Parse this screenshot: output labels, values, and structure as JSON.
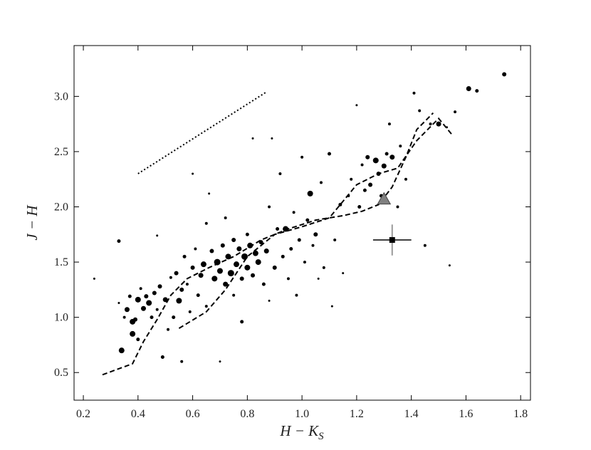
{
  "chart_data": {
    "type": "scatter",
    "xlabel": "H − K",
    "xlabel_subscript": "S",
    "ylabel": "J − H",
    "xlim": [
      0.166,
      1.836
    ],
    "ylim": [
      0.25,
      3.46
    ],
    "xticks": [
      0.2,
      0.4,
      0.6,
      0.8,
      {
        "value": 1,
        "label": "1.0"
      },
      1.2,
      1.4,
      1.6,
      1.8
    ],
    "yticks": [
      0.5,
      {
        "value": 1,
        "label": "1.0"
      },
      1.5,
      {
        "value": 2,
        "label": "2.0"
      },
      2.5,
      {
        "value": 3,
        "label": "3.0"
      }
    ],
    "color": "#000000",
    "points": {
      "x": [
        0.24,
        0.33,
        0.33,
        0.34,
        0.35,
        0.36,
        0.37,
        0.38,
        0.38,
        0.39,
        0.4,
        0.4,
        0.41,
        0.42,
        0.43,
        0.44,
        0.45,
        0.46,
        0.47,
        0.47,
        0.48,
        0.49,
        0.5,
        0.51,
        0.52,
        0.53,
        0.54,
        0.55,
        0.56,
        0.56,
        0.57,
        0.58,
        0.59,
        0.6,
        0.6,
        0.61,
        0.62,
        0.63,
        0.64,
        0.65,
        0.65,
        0.66,
        0.67,
        0.68,
        0.69,
        0.7,
        0.7,
        0.71,
        0.72,
        0.72,
        0.73,
        0.74,
        0.75,
        0.75,
        0.76,
        0.77,
        0.78,
        0.78,
        0.79,
        0.8,
        0.8,
        0.81,
        0.82,
        0.82,
        0.83,
        0.84,
        0.85,
        0.86,
        0.87,
        0.88,
        0.88,
        0.89,
        0.9,
        0.91,
        0.92,
        0.93,
        0.94,
        0.95,
        0.96,
        0.97,
        0.98,
        0.99,
        1.0,
        1.01,
        1.02,
        1.03,
        1.04,
        1.05,
        1.06,
        1.07,
        1.08,
        1.1,
        1.11,
        1.12,
        1.14,
        1.15,
        1.17,
        1.18,
        1.2,
        1.21,
        1.22,
        1.23,
        1.24,
        1.25,
        1.27,
        1.28,
        1.29,
        1.3,
        1.31,
        1.32,
        1.33,
        1.35,
        1.36,
        1.38,
        1.41,
        1.43,
        1.45,
        1.47,
        1.5,
        1.53,
        1.54,
        1.56,
        1.61,
        1.64,
        1.74
      ],
      "y": [
        1.35,
        1.69,
        1.13,
        0.7,
        1.0,
        1.07,
        1.19,
        0.96,
        0.85,
        0.98,
        1.16,
        0.8,
        1.26,
        1.08,
        1.19,
        1.13,
        1.0,
        1.22,
        1.07,
        1.74,
        1.28,
        0.64,
        1.16,
        0.89,
        1.36,
        1.0,
        1.4,
        1.15,
        0.6,
        1.25,
        1.55,
        1.3,
        1.05,
        1.45,
        2.3,
        1.62,
        1.2,
        1.38,
        1.48,
        1.1,
        1.85,
        2.12,
        1.6,
        1.35,
        1.5,
        1.42,
        0.6,
        1.65,
        1.3,
        1.9,
        1.55,
        1.4,
        1.2,
        1.7,
        1.48,
        1.62,
        1.35,
        0.96,
        1.55,
        1.45,
        1.75,
        1.65,
        1.38,
        2.62,
        1.58,
        1.5,
        1.68,
        1.3,
        1.6,
        2.0,
        1.15,
        2.62,
        1.45,
        1.8,
        2.3,
        1.55,
        1.8,
        1.35,
        1.62,
        1.95,
        1.2,
        1.7,
        2.45,
        1.5,
        1.88,
        2.12,
        1.65,
        1.75,
        1.35,
        2.22,
        1.45,
        2.48,
        1.1,
        1.7,
        2.02,
        1.4,
        2.1,
        2.25,
        2.92,
        2.0,
        2.38,
        2.15,
        2.45,
        2.2,
        2.42,
        2.3,
        2.1,
        2.37,
        2.48,
        2.75,
        2.45,
        2.0,
        2.55,
        2.25,
        3.03,
        2.87,
        1.65,
        2.75,
        2.75,
        2.72,
        1.47,
        2.86,
        3.07,
        3.05,
        3.2
      ],
      "sizes": [
        1.5,
        2.5,
        1.5,
        4,
        2,
        3.5,
        2.5,
        4,
        4,
        3,
        4,
        2.5,
        2,
        3.5,
        3,
        4,
        2.5,
        3,
        2,
        1.5,
        3,
        2.5,
        3.5,
        2,
        2,
        2.5,
        3,
        4,
        2,
        3,
        2.5,
        2,
        2,
        3,
        1.5,
        2,
        2.5,
        3.5,
        4,
        2,
        2,
        1.5,
        3,
        4,
        4.5,
        4,
        1.5,
        3,
        3.5,
        2,
        4,
        4.5,
        2,
        3,
        4,
        3.5,
        3,
        2.5,
        4.5,
        4,
        2.5,
        4,
        3,
        1.5,
        4,
        4,
        3,
        2.5,
        3.5,
        2,
        1.5,
        1.5,
        3,
        2.5,
        2,
        2.5,
        4,
        2,
        2.5,
        2,
        2,
        2.5,
        2,
        2,
        2.5,
        4,
        2,
        3,
        1.5,
        2,
        2,
        2.5,
        1.5,
        2,
        2.5,
        1.5,
        2,
        2,
        1.5,
        2.5,
        2,
        2.5,
        3,
        3,
        4,
        3,
        2.5,
        3.5,
        2.5,
        2,
        3.5,
        2,
        2,
        2,
        2,
        2,
        2,
        2,
        3.5,
        1.5,
        1.5,
        2,
        3.5,
        2.5,
        3
      ]
    },
    "tracks": [
      {
        "x": [
          0.27,
          0.38,
          0.42,
          0.47,
          0.52,
          0.58,
          0.66,
          0.75,
          0.85,
          0.95,
          1.05,
          1.15,
          1.22,
          1.28,
          1.33,
          1.38,
          1.42,
          1.48
        ],
        "y": [
          0.48,
          0.58,
          0.78,
          0.98,
          1.2,
          1.35,
          1.45,
          1.55,
          1.7,
          1.8,
          1.88,
          1.92,
          1.96,
          2.02,
          2.18,
          2.45,
          2.7,
          2.85
        ]
      },
      {
        "x": [
          0.55,
          0.65,
          0.72,
          0.8,
          0.9,
          1.0,
          1.1,
          1.15,
          1.2,
          1.28,
          1.35,
          1.42,
          1.5,
          1.55
        ],
        "y": [
          0.9,
          1.05,
          1.25,
          1.55,
          1.75,
          1.82,
          1.9,
          2.05,
          2.2,
          2.3,
          2.35,
          2.6,
          2.8,
          2.65
        ]
      }
    ],
    "reddening_vector": {
      "x": [
        0.4,
        0.87
      ],
      "y": [
        2.3,
        3.04
      ]
    },
    "triangle": {
      "x": 1.3,
      "y": 2.07,
      "color": "#808080"
    },
    "error_point": {
      "x": 1.33,
      "y": 1.7,
      "xerr": 0.07,
      "yerr": 0.14,
      "yerr_color": "#999999"
    }
  }
}
